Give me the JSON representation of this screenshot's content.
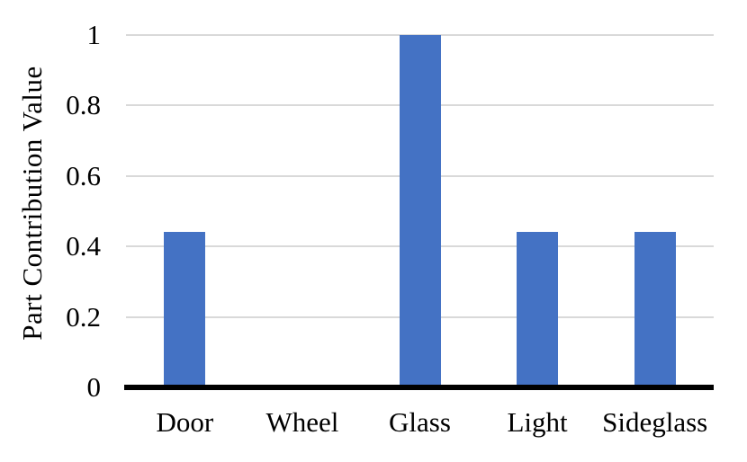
{
  "chart_data": {
    "type": "bar",
    "title": "",
    "xlabel": "",
    "ylabel": "Part Contribution Value",
    "categories": [
      "Door",
      "Wheel",
      "Glass",
      "Light",
      "Sideglass"
    ],
    "values": [
      0.44,
      0,
      1,
      0.44,
      0.44
    ],
    "series_name": "Part Contribution Value",
    "ylim": [
      0,
      1
    ],
    "y_ticks": [
      0,
      0.2,
      0.4,
      0.6,
      0.8,
      1
    ],
    "y_tick_labels": [
      "0",
      "0.2",
      "0.4",
      "0.6",
      "0.8",
      "1"
    ],
    "grid": "horizontal",
    "legend_position": "none",
    "colors": {
      "bar": "#4472C4",
      "gridline": "#D9D9D9",
      "axis_line": "#000000",
      "text": "#000000",
      "background": "#FFFFFF"
    }
  }
}
